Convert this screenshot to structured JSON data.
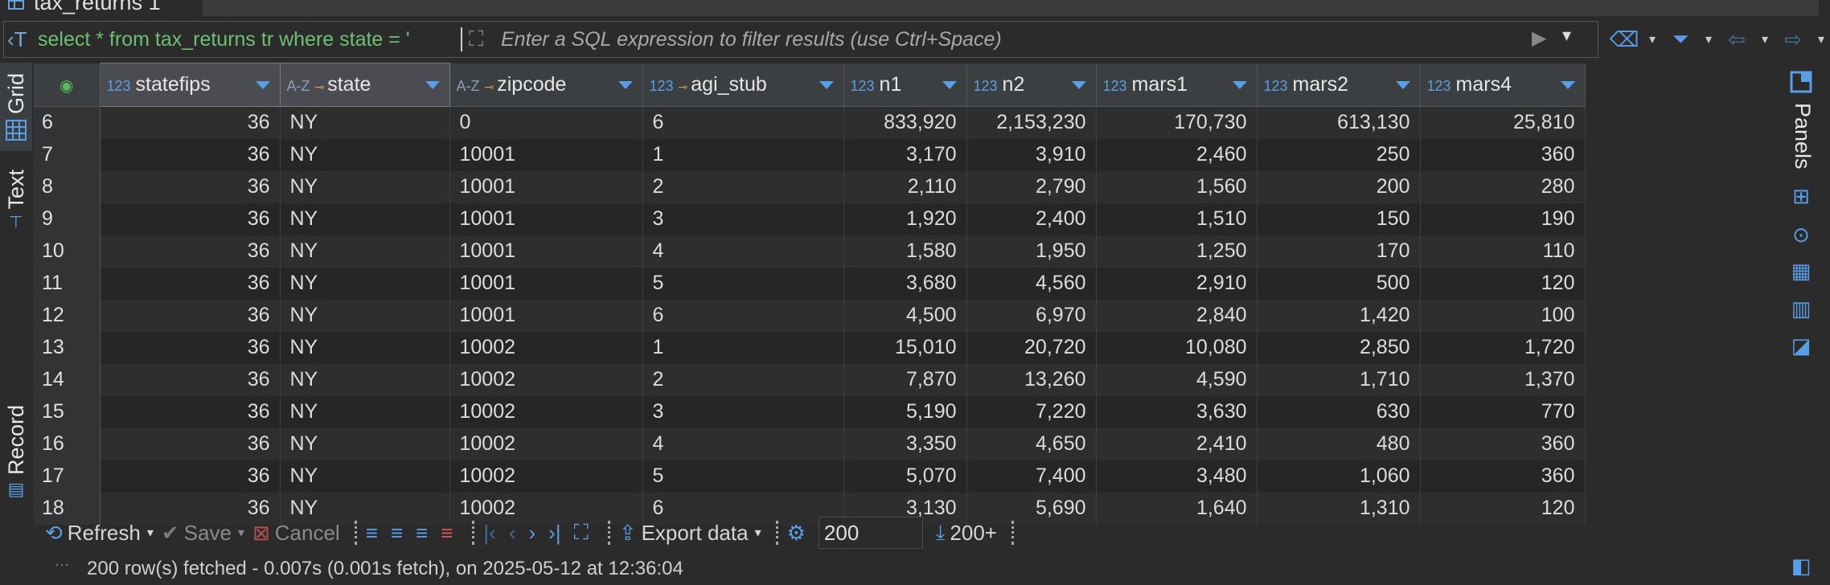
{
  "tab": {
    "title": "tax_returns 1"
  },
  "filter": {
    "prefix": "‹T",
    "query": "select * from tax_returns tr where state = '",
    "placeholder": "Enter a SQL expression to filter results (use Ctrl+Space)"
  },
  "left_panel": {
    "grid": "Grid",
    "text": "Text",
    "record": "Record"
  },
  "right_panel": {
    "title": "Panels"
  },
  "grid": {
    "columns": [
      {
        "type": "123",
        "name": "statefips",
        "key": false
      },
      {
        "type": "A-Z",
        "name": "state",
        "key": true
      },
      {
        "type": "A-Z",
        "name": "zipcode",
        "key": true
      },
      {
        "type": "123",
        "name": "agi_stub",
        "key": true
      },
      {
        "type": "123",
        "name": "n1",
        "key": false
      },
      {
        "type": "123",
        "name": "n2",
        "key": false
      },
      {
        "type": "123",
        "name": "mars1",
        "key": false
      },
      {
        "type": "123",
        "name": "mars2",
        "key": false
      },
      {
        "type": "123",
        "name": "mars4",
        "key": false
      }
    ],
    "rows": [
      [
        "6",
        "36",
        "NY",
        "0",
        "6",
        "833,920",
        "2,153,230",
        "170,730",
        "613,130",
        "25,810"
      ],
      [
        "7",
        "36",
        "NY",
        "10001",
        "1",
        "3,170",
        "3,910",
        "2,460",
        "250",
        "360"
      ],
      [
        "8",
        "36",
        "NY",
        "10001",
        "2",
        "2,110",
        "2,790",
        "1,560",
        "200",
        "280"
      ],
      [
        "9",
        "36",
        "NY",
        "10001",
        "3",
        "1,920",
        "2,400",
        "1,510",
        "150",
        "190"
      ],
      [
        "10",
        "36",
        "NY",
        "10001",
        "4",
        "1,580",
        "1,950",
        "1,250",
        "170",
        "110"
      ],
      [
        "11",
        "36",
        "NY",
        "10001",
        "5",
        "3,680",
        "4,560",
        "2,910",
        "500",
        "120"
      ],
      [
        "12",
        "36",
        "NY",
        "10001",
        "6",
        "4,500",
        "6,970",
        "2,840",
        "1,420",
        "100"
      ],
      [
        "13",
        "36",
        "NY",
        "10002",
        "1",
        "15,010",
        "20,720",
        "10,080",
        "2,850",
        "1,720"
      ],
      [
        "14",
        "36",
        "NY",
        "10002",
        "2",
        "7,870",
        "13,260",
        "4,590",
        "1,710",
        "1,370"
      ],
      [
        "15",
        "36",
        "NY",
        "10002",
        "3",
        "5,190",
        "7,220",
        "3,630",
        "630",
        "770"
      ],
      [
        "16",
        "36",
        "NY",
        "10002",
        "4",
        "3,350",
        "4,650",
        "2,410",
        "480",
        "360"
      ],
      [
        "17",
        "36",
        "NY",
        "10002",
        "5",
        "5,070",
        "7,400",
        "3,480",
        "1,060",
        "360"
      ],
      [
        "18",
        "36",
        "NY",
        "10002",
        "6",
        "3,130",
        "5,690",
        "1,640",
        "1,310",
        "120"
      ]
    ]
  },
  "toolbar": {
    "refresh": "Refresh",
    "save": "Save",
    "cancel": "Cancel",
    "export": "Export data",
    "fetch_size": "200",
    "fetch_more": "200+"
  },
  "status": {
    "text": "200 row(s) fetched - 0.007s (0.001s fetch), on 2025-05-12 at 12:36:04"
  }
}
